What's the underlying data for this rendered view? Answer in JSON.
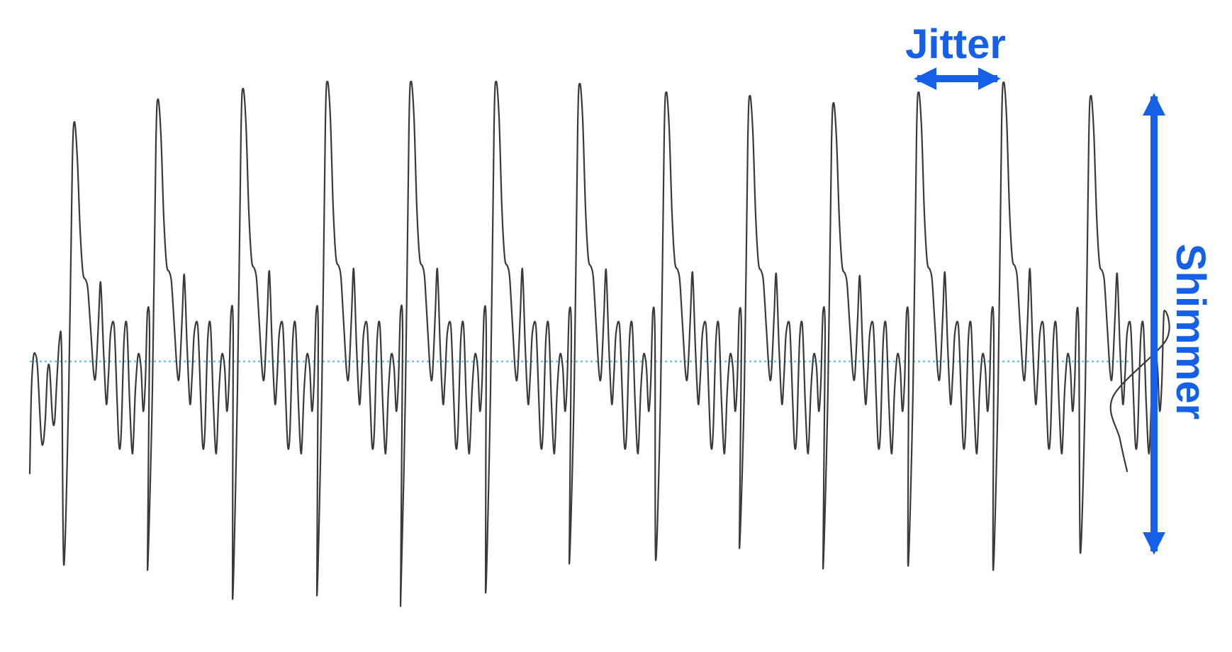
{
  "diagram": {
    "labels": {
      "period_variation": "Jitter",
      "amplitude_variation": "Shimmer"
    },
    "colors": {
      "annotation": "#1560e6",
      "waveform": "#3a3a3a",
      "baseline": "#6cc3ea",
      "background": "#ffffff"
    },
    "waveform": {
      "cycle_count": 13,
      "baseline_style": "dotted"
    }
  }
}
